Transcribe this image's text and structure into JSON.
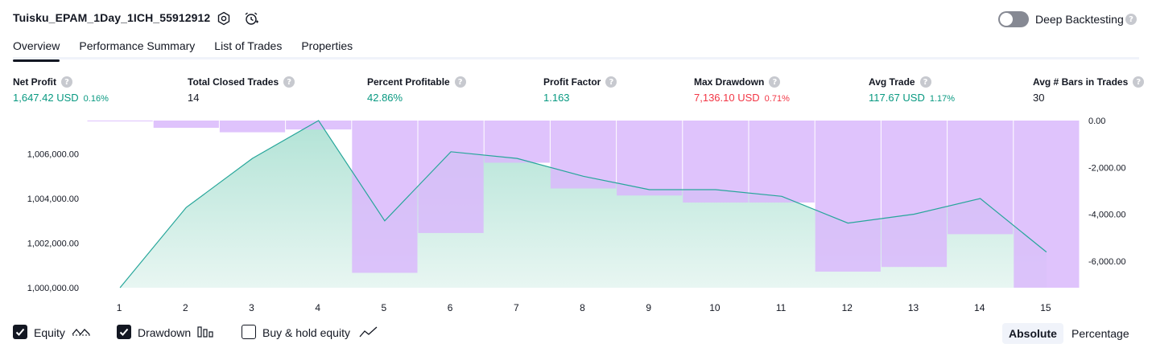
{
  "header": {
    "title": "Tuisku_EPAM_1Day_1ICH_55912912",
    "deep_backtesting_label": "Deep Backtesting"
  },
  "tabs": [
    "Overview",
    "Performance Summary",
    "List of Trades",
    "Properties"
  ],
  "metrics": [
    {
      "label": "Net Profit",
      "value": "1,647.42 USD",
      "pct": "0.16%",
      "color": "green"
    },
    {
      "label": "Total Closed Trades",
      "value": "14",
      "pct": "",
      "color": "neutral"
    },
    {
      "label": "Percent Profitable",
      "value": "42.86%",
      "pct": "",
      "color": "green"
    },
    {
      "label": "Profit Factor",
      "value": "1.163",
      "pct": "",
      "color": "green"
    },
    {
      "label": "Max Drawdown",
      "value": "7,136.10 USD",
      "pct": "0.71%",
      "color": "red"
    },
    {
      "label": "Avg Trade",
      "value": "117.67 USD",
      "pct": "1.17%",
      "color": "green"
    },
    {
      "label": "Avg # Bars in Trades",
      "value": "30",
      "pct": "",
      "color": "neutral"
    }
  ],
  "chart_data": {
    "type": "area",
    "x": [
      1,
      2,
      3,
      4,
      5,
      6,
      7,
      8,
      9,
      10,
      11,
      12,
      13,
      14,
      15
    ],
    "left_axis": {
      "ticks": [
        "1,000,000.00",
        "1,002,000.00",
        "1,004,000.00",
        "1,006,000.00"
      ],
      "ylim": [
        1000000,
        1007500
      ]
    },
    "right_axis": {
      "ticks": [
        "0.00",
        "-2,000.00",
        "-4,000.00",
        "-6,000.00"
      ],
      "ylim": [
        -7136.1,
        0
      ]
    },
    "series": [
      {
        "name": "Equity",
        "axis": "left",
        "values": [
          1000000,
          1003600,
          1005800,
          1007500,
          1003000,
          1006100,
          1005800,
          1005000,
          1004400,
          1004400,
          1004100,
          1002900,
          1003300,
          1004000,
          1001600
        ]
      },
      {
        "name": "Drawdown",
        "axis": "right",
        "values": [
          -30,
          -310,
          -500,
          -380,
          -6500,
          -4800,
          -1800,
          -2900,
          -3200,
          -3500,
          -3500,
          -6450,
          -6250,
          -4850,
          -7136.1
        ]
      }
    ],
    "colors": {
      "equity_line": "#26a69a",
      "equity_fill_top": "#b2e3d6",
      "equity_fill_bottom": "#e8f6f2",
      "drawdown": "#d9b8fb"
    }
  },
  "legend": {
    "items": [
      {
        "label": "Equity",
        "checked": true,
        "icon": "equity-wave-icon"
      },
      {
        "label": "Drawdown",
        "checked": true,
        "icon": "drawdown-bars-icon"
      },
      {
        "label": "Buy & hold equity",
        "checked": false,
        "icon": "buy-hold-line-icon"
      }
    ],
    "modes": [
      "Absolute",
      "Percentage"
    ],
    "active_mode": "Absolute"
  }
}
